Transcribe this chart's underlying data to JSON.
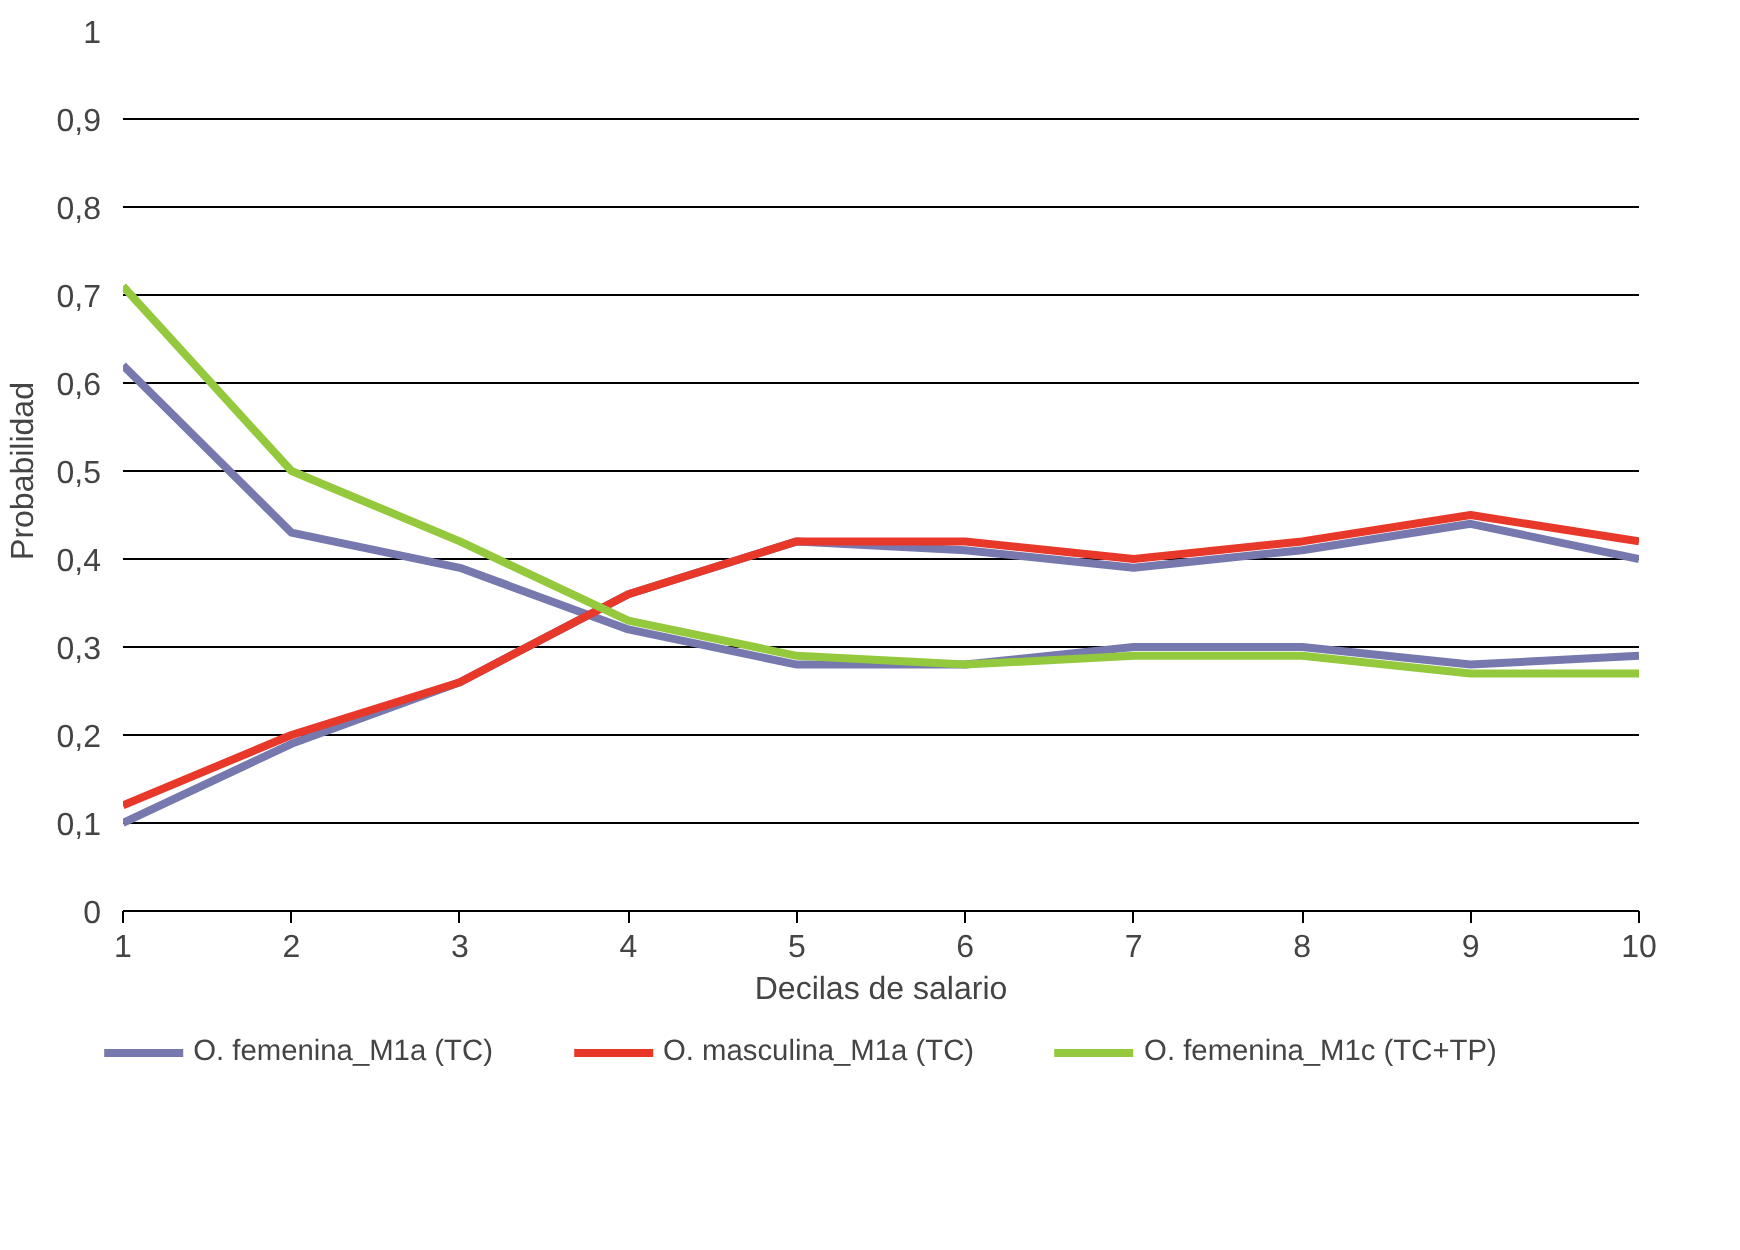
{
  "chart_data": {
    "type": "line",
    "xlabel": "Decilas de salario",
    "ylabel": "Probabilidad",
    "x": [
      1,
      2,
      3,
      4,
      5,
      6,
      7,
      8,
      9,
      10
    ],
    "series": [
      {
        "name": "O. femenina_M1a (TC)",
        "color": "#7678ae",
        "values": [
          0.62,
          0.43,
          0.39,
          0.32,
          0.28,
          0.28,
          0.3,
          0.3,
          0.28,
          0.29
        ]
      },
      {
        "color": "#7678ae",
        "values": [
          0.1,
          0.19,
          0.26,
          0.36,
          0.42,
          0.41,
          0.39,
          0.41,
          0.44,
          0.4
        ]
      },
      {
        "name": "O. masculina_M1a (TC)",
        "color": "#e8382a",
        "values": [
          0.12,
          0.2,
          0.26,
          0.36,
          0.42,
          0.42,
          0.4,
          0.42,
          0.45,
          0.42
        ]
      },
      {
        "name": "O. femenina_M1c (TC+TP)",
        "color": "#94c83d",
        "values": [
          0.71,
          0.5,
          0.42,
          0.33,
          0.29,
          0.28,
          0.29,
          0.29,
          0.27,
          0.27
        ]
      }
    ],
    "xlim": [
      1,
      10
    ],
    "xticks": [
      1,
      2,
      3,
      4,
      5,
      6,
      7,
      8,
      9,
      10
    ],
    "ylim": [
      0,
      1
    ],
    "yticks": [
      {
        "value": 0,
        "label": "0"
      },
      {
        "value": 0.1,
        "label": "0,1"
      },
      {
        "value": 0.2,
        "label": "0,2"
      },
      {
        "value": 0.3,
        "label": "0,3"
      },
      {
        "value": 0.4,
        "label": "0,4"
      },
      {
        "value": 0.5,
        "label": "0,5"
      },
      {
        "value": 0.6,
        "label": "0,6"
      },
      {
        "value": 0.7,
        "label": "0,7"
      },
      {
        "value": 0.8,
        "label": "0,8"
      },
      {
        "value": 0.9,
        "label": "0,9"
      },
      {
        "value": 1,
        "label": "1"
      }
    ],
    "grid": "y",
    "legend": "bottom",
    "marker": "none",
    "line_style": "solid"
  }
}
